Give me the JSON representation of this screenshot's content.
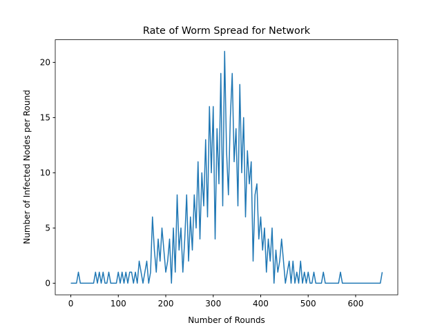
{
  "chart_data": {
    "type": "line",
    "title": "Rate of Worm Spread for Network",
    "x_label": "Number of Rounds",
    "y_label": "Number of Infected Nodes per Round",
    "x": [
      0,
      4,
      8,
      12,
      16,
      20,
      24,
      28,
      32,
      36,
      40,
      44,
      48,
      52,
      56,
      60,
      64,
      68,
      72,
      76,
      80,
      84,
      88,
      92,
      96,
      100,
      104,
      108,
      112,
      116,
      120,
      124,
      128,
      132,
      136,
      140,
      144,
      148,
      152,
      156,
      160,
      164,
      168,
      172,
      176,
      180,
      184,
      188,
      192,
      196,
      200,
      204,
      208,
      212,
      216,
      220,
      224,
      228,
      232,
      236,
      240,
      244,
      248,
      252,
      256,
      260,
      264,
      268,
      272,
      276,
      280,
      284,
      288,
      292,
      296,
      300,
      304,
      308,
      312,
      316,
      320,
      324,
      328,
      332,
      336,
      340,
      344,
      348,
      352,
      356,
      360,
      364,
      368,
      372,
      376,
      380,
      384,
      388,
      392,
      396,
      400,
      404,
      408,
      412,
      416,
      420,
      424,
      428,
      432,
      436,
      440,
      444,
      448,
      452,
      456,
      460,
      464,
      468,
      472,
      476,
      480,
      484,
      488,
      492,
      496,
      500,
      504,
      508,
      512,
      516,
      520,
      524,
      528,
      532,
      536,
      540,
      544,
      548,
      552,
      556,
      560,
      564,
      568,
      572,
      576,
      580,
      584,
      588,
      592,
      596,
      600,
      604,
      608,
      612,
      616,
      620,
      624,
      628,
      632,
      636,
      640,
      644,
      648,
      652,
      656
    ],
    "series": [
      {
        "color": "#1f77b4",
        "values": [
          0,
          0,
          0,
          0,
          1,
          0,
          0,
          0,
          0,
          0,
          0,
          0,
          0,
          1,
          0,
          1,
          0,
          1,
          0,
          0,
          1,
          0,
          0,
          0,
          0,
          1,
          0,
          1,
          0,
          1,
          0,
          1,
          1,
          0,
          1,
          0,
          2,
          1,
          0,
          1,
          2,
          0,
          1,
          6,
          3,
          1,
          4,
          2,
          5,
          3,
          1,
          2,
          4,
          0,
          5,
          1,
          8,
          3,
          5,
          1,
          4,
          8,
          2,
          6,
          3,
          8,
          5,
          11,
          4,
          10,
          7,
          13,
          6,
          16,
          10,
          16,
          4,
          14,
          9,
          19,
          7,
          21,
          12,
          8,
          15,
          19,
          11,
          14,
          7,
          18,
          10,
          15,
          6,
          12,
          9,
          11,
          2,
          8,
          9,
          4,
          6,
          3,
          5,
          1,
          4,
          2,
          5,
          0,
          3,
          1,
          2,
          4,
          2,
          0,
          1,
          2,
          0,
          2,
          0,
          1,
          0,
          2,
          0,
          1,
          0,
          1,
          0,
          0,
          1,
          0,
          0,
          0,
          0,
          1,
          0,
          0,
          0,
          0,
          0,
          0,
          0,
          0,
          1,
          0,
          0,
          0,
          0,
          0,
          0,
          0,
          0,
          0,
          0,
          0,
          0,
          0,
          0,
          0,
          0,
          0,
          0,
          0,
          0,
          0,
          1
        ]
      }
    ],
    "xlim": [
      -32.8,
      688.8
    ],
    "ylim": [
      -1.05,
      22.05
    ],
    "xticks": [
      0,
      100,
      200,
      300,
      400,
      500,
      600
    ],
    "yticks": [
      0,
      5,
      10,
      15,
      20
    ]
  }
}
